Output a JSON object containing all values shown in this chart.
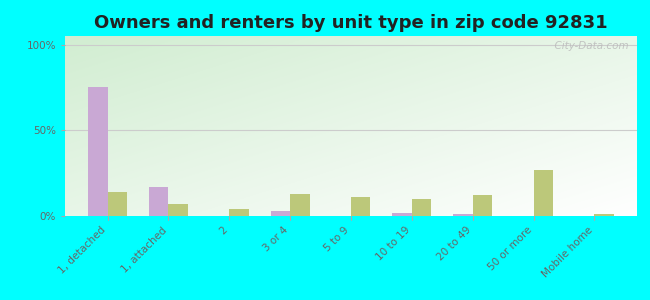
{
  "title": "Owners and renters by unit type in zip code 92831",
  "categories": [
    "1, detached",
    "1, attached",
    "2",
    "3 or 4",
    "5 to 9",
    "10 to 19",
    "20 to 49",
    "50 or more",
    "Mobile home"
  ],
  "owner_values": [
    75,
    17,
    0,
    3,
    0,
    2,
    1,
    0,
    0
  ],
  "renter_values": [
    14,
    7,
    4,
    13,
    11,
    10,
    12,
    27,
    1
  ],
  "owner_color": "#c9a8d4",
  "renter_color": "#bcc87a",
  "outer_bg": "#00ffff",
  "yticks": [
    0,
    50,
    100
  ],
  "ytick_labels": [
    "0%",
    "50%",
    "100%"
  ],
  "ylim": [
    0,
    105
  ],
  "watermark": "  City-Data.com",
  "title_fontsize": 13,
  "tick_fontsize": 7.5,
  "legend_fontsize": 9,
  "bar_width": 0.32
}
